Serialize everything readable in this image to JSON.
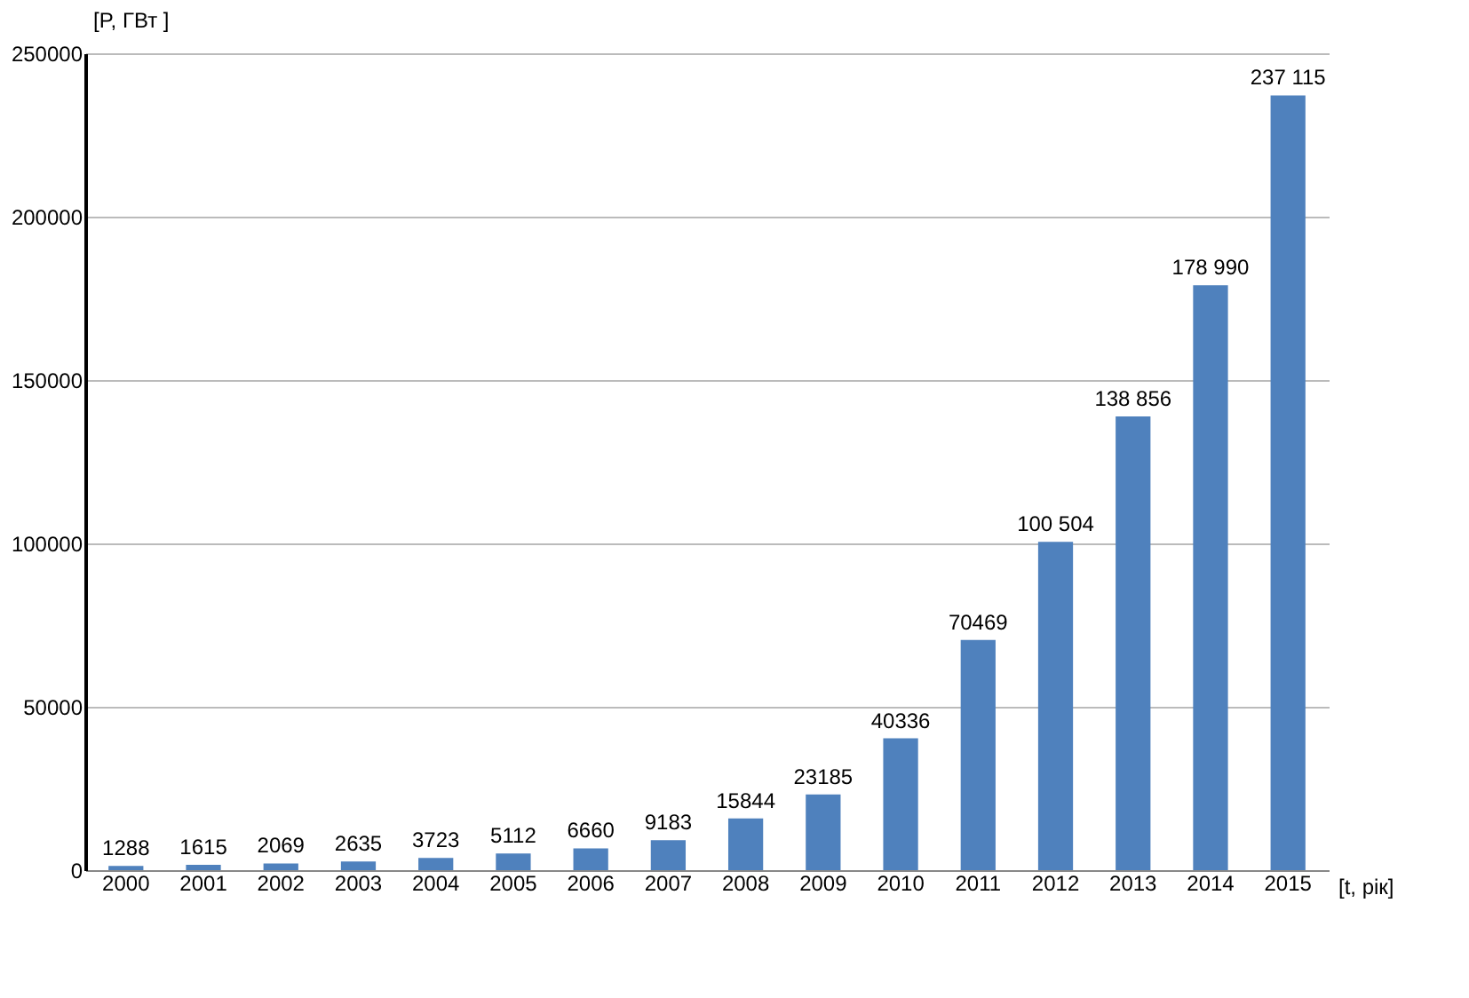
{
  "chart_data": {
    "type": "bar",
    "xlabel": "[t, рік]",
    "ylabel": "[P, ГВт ]",
    "categories": [
      "2000",
      "2001",
      "2002",
      "2003",
      "2004",
      "2005",
      "2006",
      "2007",
      "2008",
      "2009",
      "2010",
      "2011",
      "2012",
      "2013",
      "2014",
      "2015"
    ],
    "values": [
      1288,
      1615,
      2069,
      2635,
      3723,
      5112,
      6660,
      9183,
      15844,
      23185,
      40336,
      70469,
      100504,
      138856,
      178990,
      237115
    ],
    "value_labels": [
      "1288",
      "1615",
      "2069",
      "2635",
      "3723",
      "5112",
      "6660",
      "9183",
      "15844",
      "23185",
      "40336",
      "70469",
      "100 504",
      "138 856",
      "178 990",
      "237 115"
    ],
    "color": "#4f81bd",
    "ylim": [
      0,
      250000
    ],
    "yticks": [
      0,
      50000,
      100000,
      150000,
      200000,
      250000
    ],
    "grid": "y"
  }
}
